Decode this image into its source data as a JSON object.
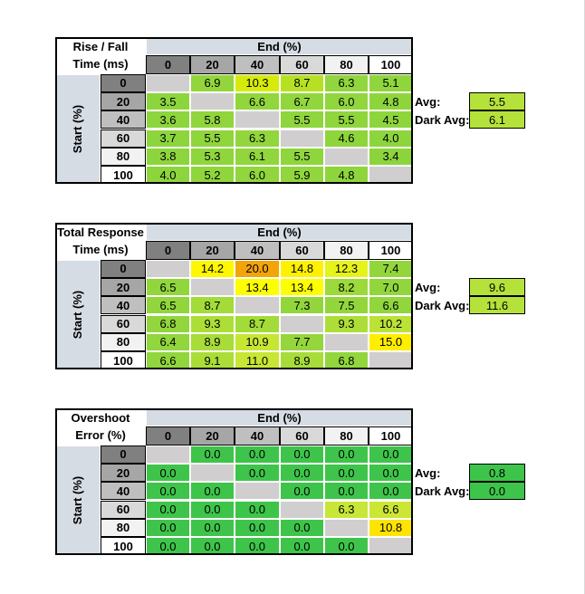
{
  "tables": [
    {
      "title_line1": "Rise / Fall",
      "title_line2": "Time (ms)",
      "end_label": "End (%)",
      "start_label": "Start (%)",
      "columns": [
        "0",
        "20",
        "40",
        "60",
        "80",
        "100"
      ],
      "rows": [
        {
          "label": "0",
          "cells": [
            null,
            "6.9",
            "10.3",
            "8.7",
            "6.3",
            "5.1"
          ]
        },
        {
          "label": "20",
          "cells": [
            "3.5",
            null,
            "6.6",
            "6.7",
            "6.0",
            "4.8"
          ]
        },
        {
          "label": "40",
          "cells": [
            "3.6",
            "5.8",
            null,
            "5.5",
            "5.5",
            "4.5"
          ]
        },
        {
          "label": "60",
          "cells": [
            "3.7",
            "5.5",
            "6.3",
            null,
            "4.6",
            "4.0"
          ]
        },
        {
          "label": "80",
          "cells": [
            "3.8",
            "5.3",
            "6.1",
            "5.5",
            null,
            "3.4"
          ]
        },
        {
          "label": "100",
          "cells": [
            "4.0",
            "5.2",
            "6.0",
            "5.9",
            "4.8",
            null
          ]
        }
      ],
      "avg_label": "Avg:",
      "avg": "5.5",
      "dark_avg_label": "Dark Avg:",
      "dark_avg": "6.1"
    },
    {
      "title_line1": "Total Response",
      "title_line2": "Time (ms)",
      "end_label": "End (%)",
      "start_label": "Start (%)",
      "columns": [
        "0",
        "20",
        "40",
        "60",
        "80",
        "100"
      ],
      "rows": [
        {
          "label": "0",
          "cells": [
            null,
            "14.2",
            "20.0",
            "14.8",
            "12.3",
            "7.4"
          ]
        },
        {
          "label": "20",
          "cells": [
            "6.5",
            null,
            "13.4",
            "13.4",
            "8.2",
            "7.0"
          ]
        },
        {
          "label": "40",
          "cells": [
            "6.5",
            "8.7",
            null,
            "7.3",
            "7.5",
            "6.6"
          ]
        },
        {
          "label": "60",
          "cells": [
            "6.8",
            "9.3",
            "8.7",
            null,
            "9.3",
            "10.2"
          ]
        },
        {
          "label": "80",
          "cells": [
            "6.4",
            "8.9",
            "10.9",
            "7.7",
            null,
            "15.0"
          ]
        },
        {
          "label": "100",
          "cells": [
            "6.6",
            "9.1",
            "11.0",
            "8.9",
            "6.8",
            null
          ]
        }
      ],
      "avg_label": "Avg:",
      "avg": "9.6",
      "dark_avg_label": "Dark Avg:",
      "dark_avg": "11.6"
    },
    {
      "title_line1": "Overshoot",
      "title_line2": "Error (%)",
      "end_label": "End (%)",
      "start_label": "Start (%)",
      "columns": [
        "0",
        "20",
        "40",
        "60",
        "80",
        "100"
      ],
      "rows": [
        {
          "label": "0",
          "cells": [
            null,
            "0.0",
            "0.0",
            "0.0",
            "0.0",
            "0.0"
          ]
        },
        {
          "label": "20",
          "cells": [
            "0.0",
            null,
            "0.0",
            "0.0",
            "0.0",
            "0.0"
          ]
        },
        {
          "label": "40",
          "cells": [
            "0.0",
            "0.0",
            null,
            "0.0",
            "0.0",
            "0.0"
          ]
        },
        {
          "label": "60",
          "cells": [
            "0.0",
            "0.0",
            "0.0",
            null,
            "6.3",
            "6.6"
          ]
        },
        {
          "label": "80",
          "cells": [
            "0.0",
            "0.0",
            "0.0",
            "0.0",
            null,
            "10.8"
          ]
        },
        {
          "label": "100",
          "cells": [
            "0.0",
            "0.0",
            "0.0",
            "0.0",
            "0.0",
            null
          ]
        }
      ],
      "avg_label": "Avg:",
      "avg": "0.8",
      "dark_avg_label": "Dark Avg:",
      "dark_avg": "0.0"
    }
  ]
}
